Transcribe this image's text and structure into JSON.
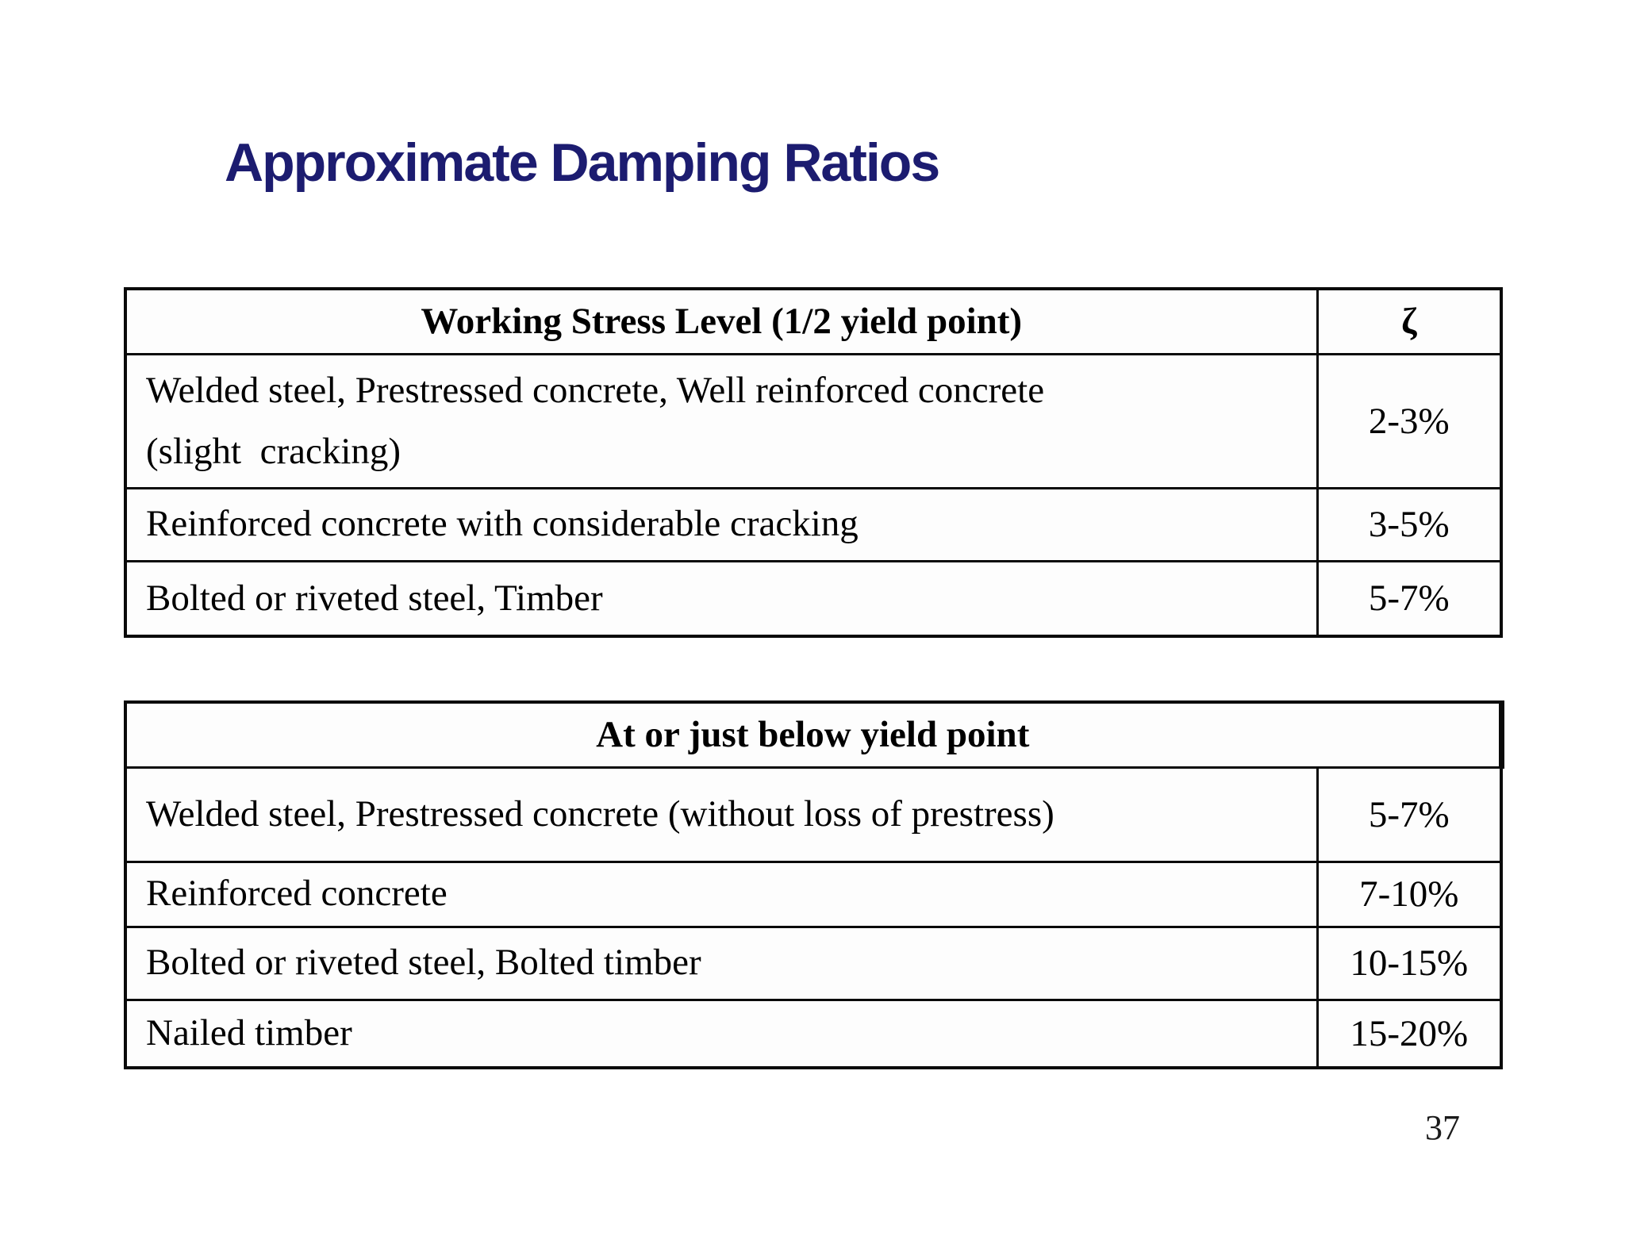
{
  "slide": {
    "title": "Approximate Damping Ratios",
    "title_color": "#1c1c70",
    "border_color": "#0a0a0a",
    "background_color": "#ffffff",
    "page_number": "37"
  },
  "table1": {
    "header": {
      "label": "Working Stress Level (1/2 yield point)",
      "zeta_symbol": "ζ"
    },
    "rows": [
      {
        "label": "Welded steel, Prestressed concrete, Well reinforced concrete\n(slight  cracking)",
        "value": "2-3%"
      },
      {
        "label": "Reinforced concrete with considerable cracking",
        "value": "3-5%"
      },
      {
        "label": "Bolted or riveted steel, Timber",
        "value": "5-7%"
      }
    ]
  },
  "table2": {
    "header": "At or just below yield point",
    "rows": [
      {
        "label": "Welded steel, Prestressed concrete (without loss of prestress)",
        "value": "5-7%"
      },
      {
        "label": "Reinforced concrete",
        "value": "7-10%"
      },
      {
        "label": "Bolted or riveted steel, Bolted timber",
        "value": "10-15%"
      },
      {
        "label": "Nailed timber",
        "value": "15-20%"
      }
    ]
  }
}
